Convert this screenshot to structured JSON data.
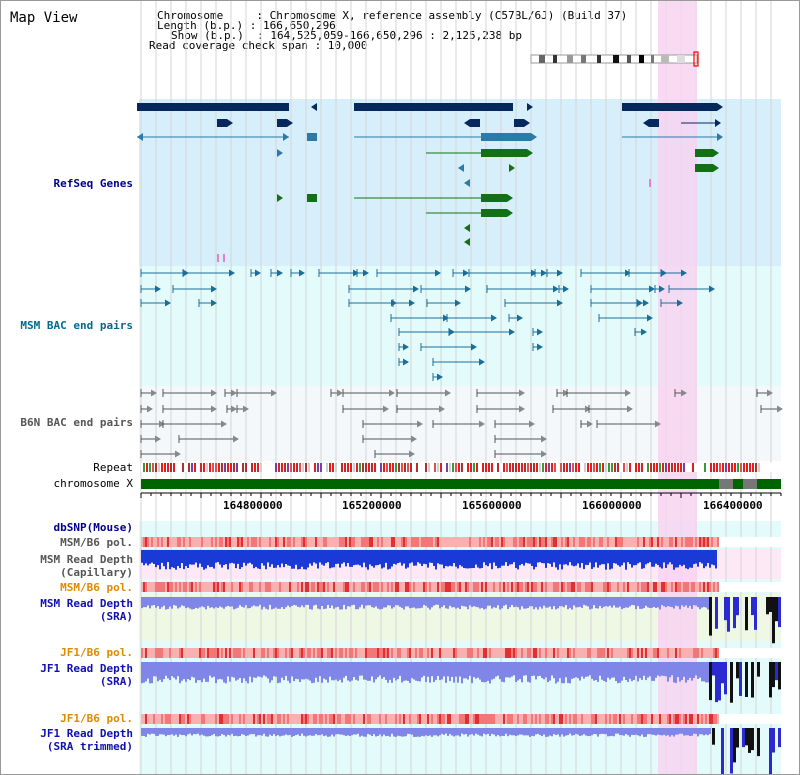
{
  "header": {
    "title": "Map View",
    "chromosome_line": "Chromosome     : Chromosome X, reference assembly (C57BL/6J) (Build 37)",
    "length_line": "Length (b.p.) : 166,650,296",
    "show_line": "Show (b.p.)  : 164,525,059-166,650,296 : 2,125,238 bp",
    "coverage_line": "Read coverage check span : 10,000"
  },
  "tracks": {
    "refseq": "RefSeq Genes",
    "msm_bac": "MSM BAC end pairs",
    "b6n_bac": "B6N BAC end pairs",
    "repeat": "Repeat",
    "chromosome": "chromosome X",
    "dbsnp": "dbSNP(Mouse)",
    "msm_b6_pol_1": "MSM/B6 pol.",
    "msm_depth_cap_1": "MSM Read Depth",
    "msm_depth_cap_2": "(Capillary)",
    "msm_b6_pol_2": "MSM/B6 pol.",
    "msm_depth_sra_1": "MSM Read Depth",
    "msm_depth_sra_2": "(SRA)",
    "jf1_b6_pol_1": "JF1/B6 pol.",
    "jf1_depth_sra_1": "JF1 Read Depth",
    "jf1_depth_sra_2": "(SRA)",
    "jf1_b6_pol_2": "JF1/B6 pol.",
    "jf1_depth_trim_1": "JF1 Read Depth",
    "jf1_depth_trim_2": "(SRA trimmed)"
  },
  "ruler": {
    "ticks": [
      "164800000",
      "165200000",
      "165600000",
      "166000000",
      "166400000"
    ]
  },
  "colors": {
    "refseq_label": "#00008b",
    "msm_label": "#006b8f",
    "dark_label": "#555555",
    "pol_label": "#e08a00",
    "depth_label": "#1010b0",
    "highlight": "#f7d3f0",
    "refseq_bg": "#d7effa",
    "msm_bg": "#e4fbfb",
    "b6n_bg": "#f5f8fb",
    "chromosome_green": "#006400"
  }
}
